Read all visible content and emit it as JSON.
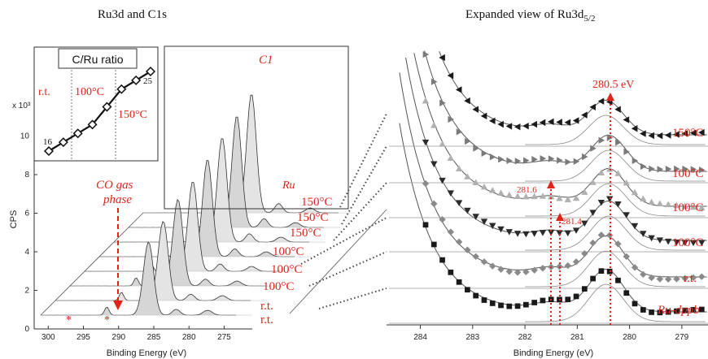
{
  "chart_data": [
    {
      "type": "line",
      "title": "Ru3d and C1s",
      "xlabel": "Binding Energy (eV)",
      "ylabel": "CPS",
      "y_multiplier": "x 10³",
      "x_ticks": [
        "300",
        "295",
        "290",
        "285",
        "280",
        "275"
      ],
      "y_ticks": [
        "0",
        "2",
        "4",
        "6",
        "8",
        "10"
      ],
      "xlim": [
        302,
        271
      ],
      "ylim": [
        0,
        12
      ],
      "x_reversed": true,
      "peak_labels": {
        "c1": "C1",
        "ru": "Ru"
      },
      "annotation": {
        "gas_line1": "CO gas",
        "gas_line2": "phase",
        "asterisk": "*"
      },
      "c1_peak_ev": 284.8,
      "ru_peak_ev": 280.5,
      "co_gas_peak_ev": 291.5,
      "series": [
        {
          "name": "r.t.",
          "c1_intensity": 0.55
        },
        {
          "name": "r.t.",
          "c1_intensity": 0.6
        },
        {
          "name": "100°C",
          "c1_intensity": 0.66
        },
        {
          "name": "100°C",
          "c1_intensity": 0.72
        },
        {
          "name": "100°C",
          "c1_intensity": 0.78
        },
        {
          "name": "150°C",
          "c1_intensity": 0.84
        },
        {
          "name": "150°C",
          "c1_intensity": 0.9
        },
        {
          "name": "150°C",
          "c1_intensity": 0.96
        }
      ],
      "inset": {
        "title": "C/Ru ratio",
        "y_start_label": "16",
        "y_end_label": "25",
        "regions": [
          "r.t.",
          "100°C",
          "150°C"
        ],
        "values": [
          16,
          17,
          18,
          19,
          21,
          23,
          24,
          25
        ]
      }
    },
    {
      "type": "scatter",
      "title": "Expanded view of Ru3d",
      "title_sub": "5/2",
      "xlabel": "Binding Energy (eV)",
      "x_ticks": [
        "284",
        "283",
        "282",
        "281",
        "280",
        "279"
      ],
      "xlim": [
        284.6,
        278.5
      ],
      "x_reversed": true,
      "peak_labels": {
        "main": "280.5 eV",
        "a": "281.6",
        "b": "281.4"
      },
      "series": [
        {
          "name": "Ru-dppb",
          "marker": "square",
          "peak_ev": 280.45
        },
        {
          "name": "r.t.",
          "marker": "diamond",
          "peak_ev": 280.45
        },
        {
          "name": "100°C",
          "marker": "triangle-down",
          "peak_ev": 280.4
        },
        {
          "name": "100°C",
          "marker": "triangle-up",
          "peak_ev": 280.4
        },
        {
          "name": "100°C",
          "marker": "triangle-right",
          "peak_ev": 280.4
        },
        {
          "name": "150°C",
          "marker": "triangle-left",
          "peak_ev": 280.45
        }
      ]
    }
  ],
  "colors": {
    "annotation": "#e2231a",
    "dark_marker": "#1a1a1a",
    "light_marker": "#a9a9a9",
    "fill": "#d9d9d9"
  }
}
